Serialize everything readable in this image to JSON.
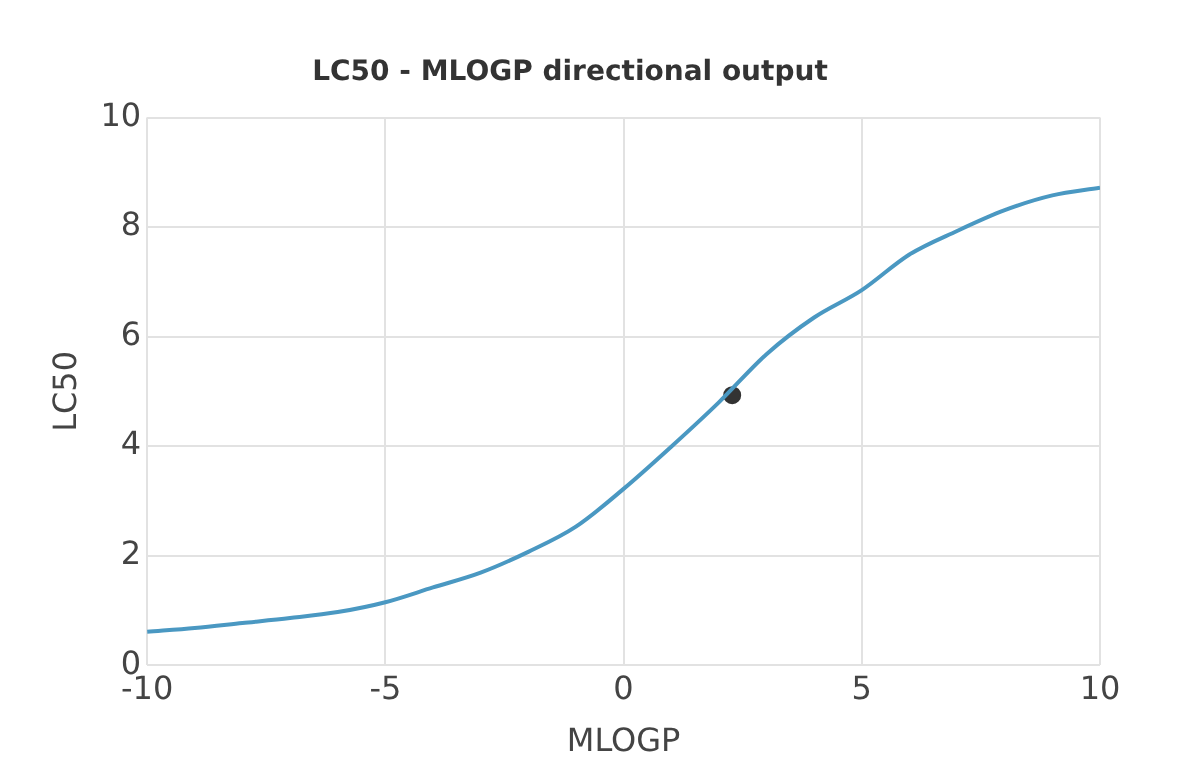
{
  "chart_data": {
    "type": "line",
    "title": "LC50 - MLOGP directional output",
    "xlabel": "MLOGP",
    "ylabel": "LC50",
    "xlim": [
      -10,
      10
    ],
    "xticks": [
      -10,
      -5,
      0,
      5,
      10
    ],
    "ylim": [
      0,
      10
    ],
    "yticks": [
      0,
      2,
      4,
      6,
      8,
      10
    ],
    "grid": true,
    "legend": false,
    "series": [
      {
        "color": "#4a98c2",
        "marker": "none",
        "x": [
          -10,
          -9,
          -8,
          -7,
          -6,
          -5,
          -4,
          -3,
          -2,
          -1,
          0,
          1,
          2,
          3,
          4,
          5,
          6,
          7,
          8,
          9,
          10
        ],
        "values": [
          0.61,
          0.68,
          0.77,
          0.86,
          0.97,
          1.15,
          1.42,
          1.69,
          2.07,
          2.53,
          3.22,
          3.99,
          4.8,
          5.68,
          6.35,
          6.85,
          7.5,
          7.93,
          8.31,
          8.58,
          8.72
        ]
      },
      {
        "type": "scatter",
        "color": "#333333",
        "marker": "circle",
        "x": [
          2.28
        ],
        "values": [
          4.93
        ]
      }
    ]
  }
}
